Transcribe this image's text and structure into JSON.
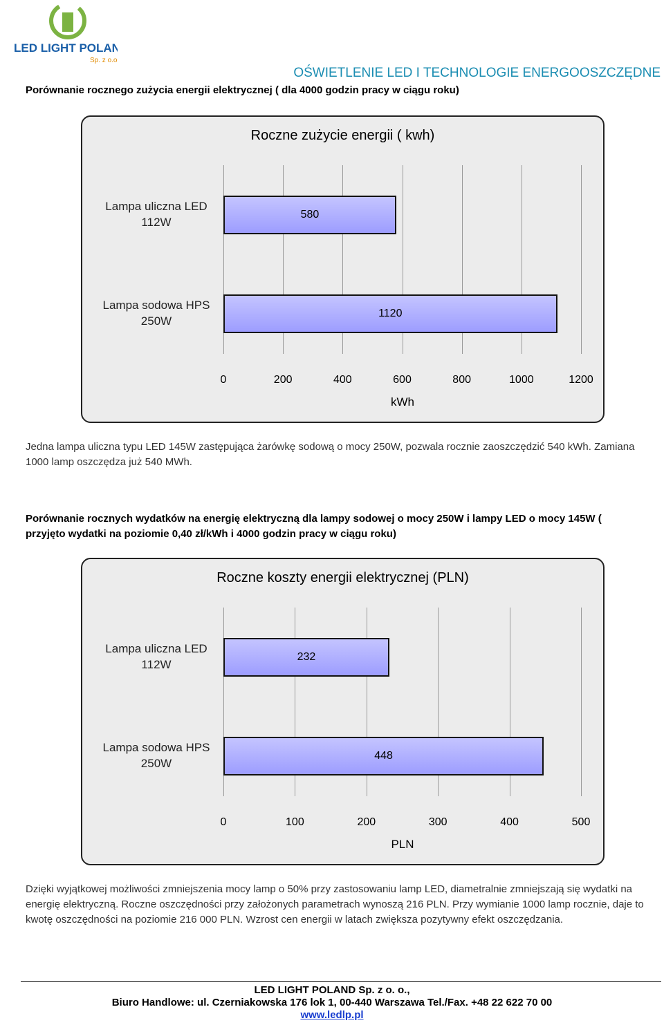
{
  "header": {
    "logo_text": "LED LIGHT POLAND",
    "logo_sub": "Sp. z o.o.",
    "tagline": "OŚWIETLENIE LED I TECHNOLOGIE ENERGOOSZCZĘDNE"
  },
  "section1": {
    "heading": "Porównanie rocznego zużycia energii elektrycznej ( dla 4000 godzin pracy w ciągu roku)",
    "note": "Jedna lampa uliczna typu LED 145W zastępująca żarówkę sodową o mocy 250W, pozwala rocznie zaoszczędzić 540 kWh. Zamiana 1000 lamp oszczędza już 540 MWh."
  },
  "chart_data": [
    {
      "type": "bar",
      "orientation": "horizontal",
      "title": "Roczne zużycie energii ( kwh)",
      "x_label": "kWh",
      "categories": [
        "Lampa uliczna LED 112W",
        "Lampa sodowa HPS 250W"
      ],
      "values": [
        580,
        1120
      ],
      "color": "#9d9dff",
      "xlim": [
        0,
        1200
      ],
      "xticks": [
        0,
        200,
        400,
        600,
        800,
        1000,
        1200
      ],
      "grid": true
    },
    {
      "type": "bar",
      "orientation": "horizontal",
      "title": "Roczne koszty energii elektrycznej (PLN)",
      "x_label": "PLN",
      "categories": [
        "Lampa uliczna LED 112W",
        "Lampa sodowa HPS 250W"
      ],
      "values": [
        232,
        448
      ],
      "color": "#9d9dff",
      "xlim": [
        0,
        500
      ],
      "xticks": [
        0,
        100,
        200,
        300,
        400,
        500
      ],
      "grid": true
    }
  ],
  "section2": {
    "heading": "Porównanie rocznych wydatków na energię elektryczną dla lampy sodowej o mocy 250W i lampy LED o mocy 145W ( przyjęto wydatki na poziomie 0,40 zł/kWh i 4000 godzin pracy w ciągu roku)",
    "note": "Dzięki wyjątkowej możliwości zmniejszenia mocy lamp o 50% przy zastosowaniu lamp LED, diametralnie zmniejszają się wydatki na energię elektryczną. Roczne oszczędności przy założonych parametrach wynoszą 216 PLN. Przy wymianie 1000 lamp rocznie, daje to kwotę oszczędności na poziomie 216 000 PLN. Wzrost cen energii w latach zwiększa pozytywny efekt oszczędzania."
  },
  "footer": {
    "company": "LED LIGHT POLAND Sp. z o. o.,",
    "address": "Biuro Handlowe: ul. Czerniakowska 176 lok 1, 00-440 Warszawa Tel./Fax. +48 22 622 70 00",
    "website": "www.ledlp.pl"
  }
}
